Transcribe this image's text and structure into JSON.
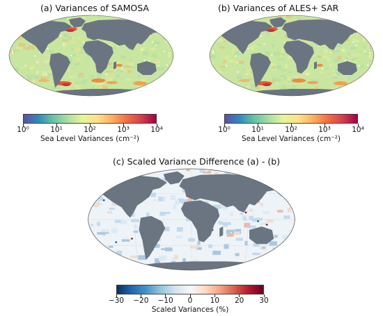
{
  "panels": [
    {
      "id": "a",
      "title": "(a) Variances of SAMOSA",
      "type": "variance"
    },
    {
      "id": "b",
      "title": "(b) Variances of ALES+ SAR",
      "type": "variance"
    },
    {
      "id": "c",
      "title": "(c) Scaled Variance Difference (a) - (b)",
      "type": "difference"
    }
  ],
  "colorbars": {
    "variance": {
      "label": "Sea Level Variances (cm⁻²)",
      "scale": "log",
      "range": [
        1,
        10000
      ],
      "ticks": [
        "10⁰",
        "10¹",
        "10²",
        "10³",
        "10⁴"
      ],
      "colormap": "Spectral_r"
    },
    "difference": {
      "label": "Scaled Variances (%)",
      "scale": "linear",
      "range": [
        -30,
        30
      ],
      "ticks": [
        "−30",
        "−20",
        "−10",
        "0",
        "10",
        "20",
        "30"
      ],
      "colormap": "RdBu_r"
    }
  },
  "colors": {
    "land": "#6b7581",
    "ocean_variance": "#c9e6a0",
    "ocean_difference": "#eef3f8",
    "high_variance": "#e8552f"
  },
  "chart_data": [
    {
      "type": "heatmap",
      "title": "(a) Variances of SAMOSA",
      "projection": "Robinson",
      "colorbar_label": "Sea Level Variances (cm⁻²)",
      "clim": [
        1,
        10000
      ],
      "log_scale": true
    },
    {
      "type": "heatmap",
      "title": "(b) Variances of ALES+ SAR",
      "projection": "Robinson",
      "colorbar_label": "Sea Level Variances (cm⁻²)",
      "clim": [
        1,
        10000
      ],
      "log_scale": true
    },
    {
      "type": "heatmap",
      "title": "(c) Scaled Variance Difference (a) - (b)",
      "projection": "Robinson",
      "colorbar_label": "Scaled Variances (%)",
      "clim": [
        -30,
        30
      ],
      "log_scale": false
    }
  ]
}
